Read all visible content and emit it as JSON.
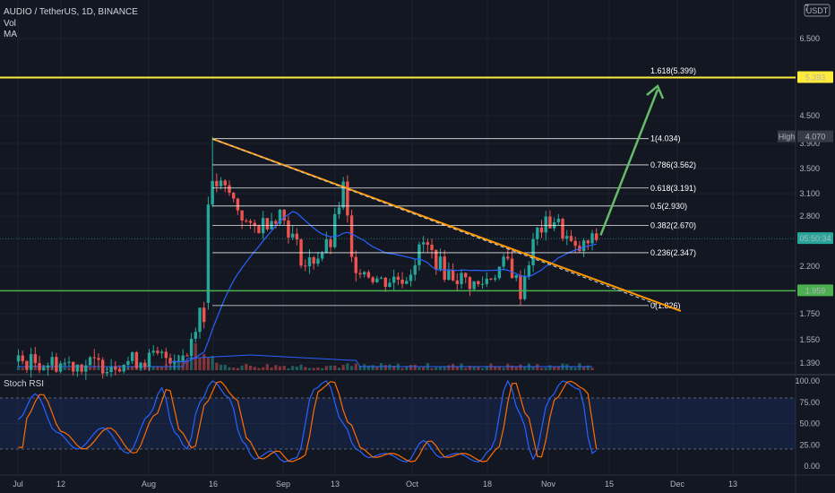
{
  "header": {
    "symbol": "AUDIO / TetherUS, 1D, BINANCE",
    "indicators": [
      "Vol",
      "MA"
    ]
  },
  "price_scale": {
    "unit": "USDT",
    "top_label": "7",
    "ticks": [
      "6.500",
      "5.500",
      "4.500",
      "3.900",
      "3.500",
      "3.100",
      "2.800",
      "2.200",
      "1.750",
      "1.550",
      "1.390"
    ],
    "badges": [
      {
        "label": "5.393",
        "bg": "#ffeb3b",
        "fg": "#000000",
        "price": 5.393
      },
      {
        "label": "4.070",
        "bg": "#363a45",
        "fg": "#ffffff",
        "price": 4.07,
        "prefix": "High"
      },
      {
        "label": "05:50:34",
        "bg": "#26a69a",
        "fg": "#ffffff",
        "price": 2.51
      },
      {
        "label": "1.959",
        "bg": "#4caf50",
        "fg": "#ffffff",
        "price": 1.959
      }
    ]
  },
  "time_axis": {
    "labels": [
      "Jul",
      "12",
      "Aug",
      "16",
      "Sep",
      "13",
      "Oct",
      "18",
      "Nov",
      "15",
      "Dec",
      "13"
    ]
  },
  "fibonacci": [
    {
      "label": "1.618(5.399)",
      "level": 5.399
    },
    {
      "label": "1(4.034)",
      "level": 4.034
    },
    {
      "label": "0.786(3.562)",
      "level": 3.562
    },
    {
      "label": "0.618(3.191)",
      "level": 3.191
    },
    {
      "label": "0.5(2.930)",
      "level": 2.93
    },
    {
      "label": "0.382(2.670)",
      "level": 2.67
    },
    {
      "label": "0.236(2.347)",
      "level": 2.347
    },
    {
      "label": "0(1.826)",
      "level": 1.826
    }
  ],
  "stoch_rsi": {
    "title": "Stoch RSI",
    "ticks": [
      "100.00",
      "75.00",
      "50.00",
      "25.00",
      "0.00"
    ],
    "upper_band": 80,
    "lower_band": 20,
    "k_color": "#2962ff",
    "d_color": "#ff6d00"
  },
  "colors": {
    "up": "#26a69a",
    "down": "#ef5350",
    "ma": "#2962ff",
    "resistance": "#ffeb3b",
    "support": "#4caf50",
    "trendline": "#ff9800",
    "arrow": "#66bb6a"
  },
  "chart_data": {
    "type": "candlestick",
    "title": "AUDIO / TetherUS, 1D, BINANCE",
    "ylabel": "USDT",
    "grid": true,
    "x_range": [
      "Jul",
      "Dec 13"
    ],
    "y_range": [
      1.35,
      7.0
    ],
    "y_scale": "log",
    "horizontal_levels": {
      "resistance": 5.393,
      "support": 1.959
    },
    "trendline": {
      "from": {
        "date": "Aug 16",
        "price": 4.03
      },
      "to": {
        "date": "Dec 5",
        "price": 1.78
      }
    },
    "projection_arrow": {
      "from": {
        "date": "Nov 16",
        "price": 2.55
      },
      "to": {
        "date": "Nov 28",
        "price": 5.1
      }
    },
    "price_series": [
      {
        "date": "Aug 16",
        "close": 3.3
      },
      {
        "date": "Aug 20",
        "close": 3.1
      },
      {
        "date": "Aug 25",
        "close": 2.6
      },
      {
        "date": "Sep 1",
        "close": 2.85
      },
      {
        "date": "Sep 7",
        "close": 2.2
      },
      {
        "date": "Sep 13",
        "close": 2.45
      },
      {
        "date": "Sep 16",
        "close": 3.2
      },
      {
        "date": "Sep 18",
        "close": 2.25
      },
      {
        "date": "Sep 25",
        "close": 2.05
      },
      {
        "date": "Oct 1",
        "close": 2.1
      },
      {
        "date": "Oct 5",
        "close": 2.45
      },
      {
        "date": "Oct 10",
        "close": 2.15
      },
      {
        "date": "Oct 18",
        "close": 2.0
      },
      {
        "date": "Oct 25",
        "close": 2.25
      },
      {
        "date": "Oct 28",
        "close": 1.95
      },
      {
        "date": "Nov 1",
        "close": 2.6
      },
      {
        "date": "Nov 5",
        "close": 2.75
      },
      {
        "date": "Nov 10",
        "close": 2.35
      },
      {
        "date": "Nov 15",
        "close": 2.51
      }
    ]
  }
}
